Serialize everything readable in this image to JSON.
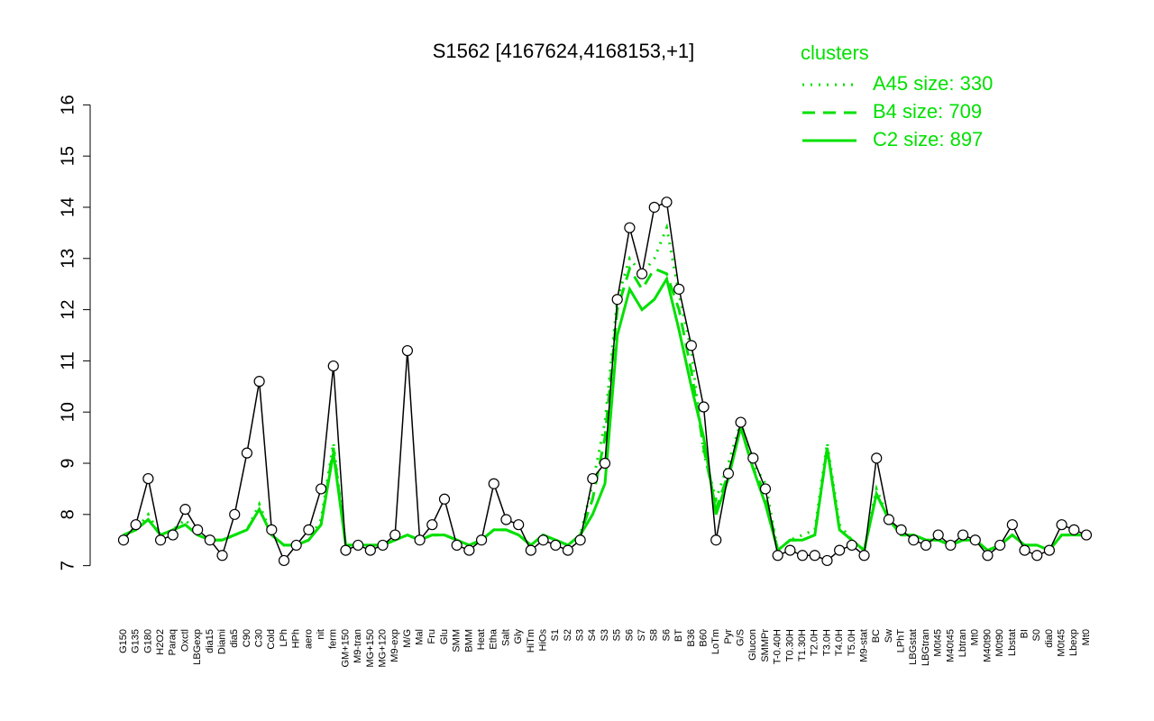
{
  "chart_data": {
    "type": "line",
    "title": "S1562 [4167624,4168153,+1]",
    "legend_title": "clusters",
    "legend_color": "#00e000",
    "categories": [
      "G150",
      "G135",
      "G180",
      "H2O2",
      "Paraq",
      "Oxctl",
      "LBGexp",
      "dia15",
      "Diami",
      "dia5",
      "C90",
      "C30",
      "Cold",
      "LPh",
      "HPh",
      "aero",
      "nit",
      "ferm",
      "GM+150",
      "M9-tran",
      "MG+150",
      "MG+120",
      "M9-exp",
      "M/G",
      "Mal",
      "Fru",
      "Glu",
      "SMM",
      "BMM",
      "Heat",
      "Etha",
      "Salt",
      "Gly",
      "HiTm",
      "HiOs",
      "S1",
      "S2",
      "S3",
      "S4",
      "S3",
      "S5",
      "S6",
      "S7",
      "S8",
      "S6",
      "BT",
      "B36",
      "B60",
      "LoTm",
      "Pyr",
      "G/S",
      "Glucon",
      "SMMPr",
      "T-0.40H",
      "T0.30H",
      "T1.30H",
      "T2.0H",
      "T3.0H",
      "T4.0H",
      "T5.0H",
      "M9-stat",
      "BC",
      "Sw",
      "LPhT",
      "LBGstat",
      "LBGtran",
      "M0t45",
      "M40t45",
      "Lbtran",
      "Mt0",
      "M40t90",
      "M0t90",
      "Lbstat",
      "BI",
      "S0",
      "dia0",
      "M0t45",
      "Lbexp",
      "Mt0"
    ],
    "values": [
      7.5,
      7.8,
      8.7,
      7.5,
      7.6,
      8.1,
      7.7,
      7.5,
      7.2,
      8.0,
      9.2,
      10.6,
      7.7,
      7.1,
      7.4,
      7.7,
      8.5,
      10.9,
      7.3,
      7.4,
      7.3,
      7.4,
      7.6,
      11.2,
      7.5,
      7.8,
      8.3,
      7.4,
      7.3,
      7.5,
      8.6,
      7.9,
      7.8,
      7.3,
      7.5,
      7.4,
      7.3,
      7.5,
      8.7,
      9.0,
      12.2,
      13.6,
      12.7,
      14.0,
      14.1,
      12.4,
      11.3,
      10.1,
      7.5,
      8.8,
      9.8,
      9.1,
      8.5,
      7.2,
      7.3,
      7.2,
      7.2,
      7.1,
      7.3,
      7.4,
      7.2,
      9.1,
      7.9,
      7.7,
      7.5,
      7.4,
      7.6,
      7.4,
      7.6,
      7.5,
      7.2,
      7.4,
      7.8,
      7.3,
      7.2,
      7.3,
      7.8,
      7.7,
      7.6
    ],
    "point_color": "#000000",
    "series": [
      {
        "name": "A45 size: 330",
        "color": "#00e000",
        "linestyle": "dotted",
        "values": [
          7.6,
          7.7,
          8.0,
          7.6,
          7.7,
          7.9,
          7.6,
          7.5,
          7.5,
          7.6,
          7.7,
          8.2,
          7.6,
          7.4,
          7.4,
          7.5,
          7.9,
          9.4,
          7.4,
          7.4,
          7.4,
          7.4,
          7.5,
          7.6,
          7.5,
          7.6,
          7.6,
          7.5,
          7.4,
          7.5,
          7.7,
          7.7,
          7.6,
          7.4,
          7.6,
          7.5,
          7.4,
          7.6,
          8.6,
          9.8,
          12.2,
          13.0,
          12.7,
          13.0,
          13.6,
          12.3,
          11.2,
          9.2,
          8.3,
          9.0,
          9.8,
          9.0,
          8.6,
          7.3,
          7.5,
          7.6,
          7.7,
          9.4,
          7.8,
          7.5,
          7.3,
          8.5,
          7.9,
          7.6,
          7.6,
          7.5,
          7.5,
          7.4,
          7.5,
          7.5,
          7.3,
          7.4,
          7.6,
          7.4,
          7.4,
          7.3,
          7.6,
          7.6,
          7.6
        ]
      },
      {
        "name": "B4 size: 709",
        "color": "#00e000",
        "linestyle": "dashed",
        "values": [
          7.6,
          7.7,
          7.9,
          7.6,
          7.7,
          7.8,
          7.6,
          7.5,
          7.5,
          7.6,
          7.7,
          8.1,
          7.6,
          7.4,
          7.4,
          7.5,
          7.8,
          9.3,
          7.4,
          7.4,
          7.4,
          7.4,
          7.5,
          7.6,
          7.5,
          7.6,
          7.6,
          7.5,
          7.4,
          7.5,
          7.7,
          7.7,
          7.6,
          7.4,
          7.6,
          7.5,
          7.4,
          7.6,
          8.3,
          9.5,
          12.0,
          12.8,
          12.4,
          12.8,
          12.7,
          12.0,
          10.8,
          9.3,
          8.1,
          8.8,
          9.7,
          8.9,
          8.4,
          7.3,
          7.5,
          7.5,
          7.6,
          9.3,
          7.7,
          7.5,
          7.3,
          8.4,
          7.9,
          7.6,
          7.6,
          7.5,
          7.5,
          7.4,
          7.5,
          7.5,
          7.3,
          7.4,
          7.6,
          7.4,
          7.4,
          7.3,
          7.6,
          7.6,
          7.6
        ]
      },
      {
        "name": "C2 size: 897",
        "color": "#00e000",
        "linestyle": "solid",
        "values": [
          7.6,
          7.7,
          7.9,
          7.6,
          7.7,
          7.8,
          7.6,
          7.5,
          7.5,
          7.6,
          7.7,
          8.1,
          7.6,
          7.4,
          7.4,
          7.5,
          7.8,
          9.2,
          7.4,
          7.4,
          7.4,
          7.4,
          7.5,
          7.6,
          7.5,
          7.6,
          7.6,
          7.5,
          7.4,
          7.5,
          7.7,
          7.7,
          7.6,
          7.4,
          7.6,
          7.5,
          7.4,
          7.6,
          8.0,
          8.6,
          11.5,
          12.4,
          12.0,
          12.2,
          12.6,
          11.6,
          10.5,
          9.5,
          8.0,
          8.7,
          9.7,
          8.9,
          8.2,
          7.3,
          7.5,
          7.5,
          7.6,
          9.3,
          7.7,
          7.5,
          7.3,
          8.4,
          7.9,
          7.6,
          7.6,
          7.5,
          7.5,
          7.4,
          7.5,
          7.5,
          7.3,
          7.4,
          7.6,
          7.4,
          7.4,
          7.3,
          7.6,
          7.6,
          7.6
        ]
      }
    ],
    "ylim": [
      6.8,
      16.2
    ],
    "yticks": [
      7,
      8,
      9,
      10,
      11,
      12,
      13,
      14,
      15,
      16
    ]
  }
}
